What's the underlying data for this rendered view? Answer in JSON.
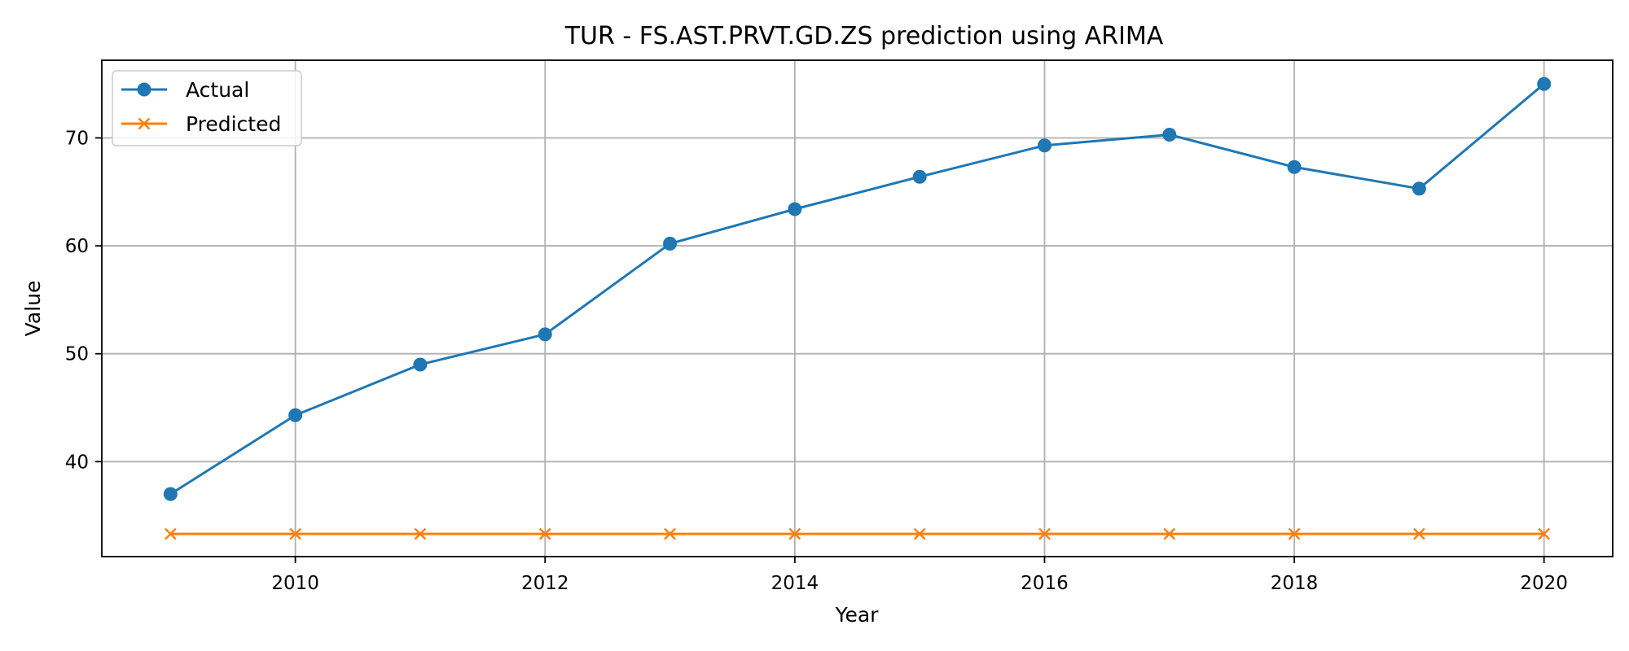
{
  "chart_data": {
    "type": "line",
    "title": "TUR - FS.AST.PRVT.GD.ZS prediction using ARIMA",
    "xlabel": "Year",
    "ylabel": "Value",
    "x": [
      2009,
      2010,
      2011,
      2012,
      2013,
      2014,
      2015,
      2016,
      2017,
      2018,
      2019,
      2020
    ],
    "xlim": [
      2008.45,
      2020.55
    ],
    "ylim": [
      31.2,
      77.2
    ],
    "xticks": [
      2010,
      2012,
      2014,
      2016,
      2018,
      2020
    ],
    "yticks": [
      40,
      50,
      60,
      70
    ],
    "grid": true,
    "legend_position": "upper-left",
    "series": [
      {
        "name": "Actual",
        "color": "#1f77b4",
        "marker": "circle",
        "values": [
          37.0,
          44.3,
          49.0,
          51.8,
          60.2,
          63.4,
          66.4,
          69.3,
          70.3,
          67.3,
          65.3,
          75.0
        ]
      },
      {
        "name": "Predicted",
        "color": "#ff7f0e",
        "marker": "x",
        "values": [
          33.3,
          33.3,
          33.3,
          33.3,
          33.3,
          33.3,
          33.3,
          33.3,
          33.3,
          33.3,
          33.3,
          33.3
        ]
      }
    ]
  }
}
